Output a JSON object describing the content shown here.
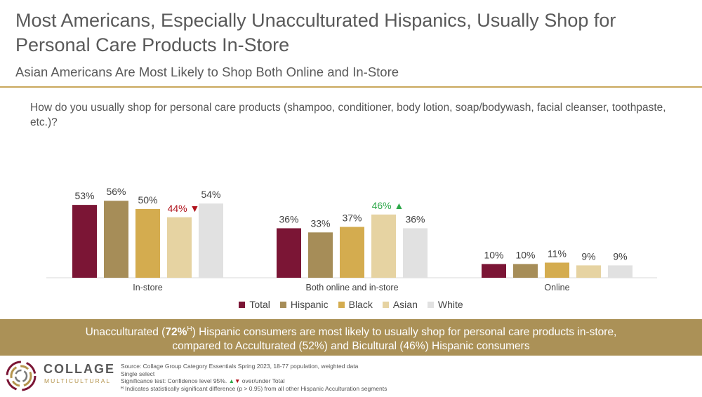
{
  "header": {
    "title": "Most Americans, Especially Unacculturated Hispanics, Usually Shop for Personal Care Products In-Store",
    "subtitle": "Asian Americans Are Most Likely to Shop Both Online and In-Store"
  },
  "question": "How do you usually shop for personal care products (shampoo, conditioner, body lotion, soap/bodywash, facial cleanser, toothpaste, etc.)?",
  "chart_data": {
    "type": "bar",
    "categories": [
      "In-store",
      "Both online and in-store",
      "Online"
    ],
    "series": [
      {
        "name": "Total",
        "color": "#7b1535",
        "values": [
          53,
          36,
          10
        ],
        "labels": [
          "53%",
          "36%",
          "10%"
        ]
      },
      {
        "name": "Hispanic",
        "color": "#a68d58",
        "values": [
          56,
          33,
          10
        ],
        "labels": [
          "56%",
          "33%",
          "10%"
        ]
      },
      {
        "name": "Black",
        "color": "#d4ac4f",
        "values": [
          50,
          37,
          11
        ],
        "labels": [
          "50%",
          "37%",
          "11%"
        ]
      },
      {
        "name": "Asian",
        "color": "#e6d3a2",
        "values": [
          44,
          46,
          9
        ],
        "labels": [
          "44%",
          "46%",
          "9%"
        ]
      },
      {
        "name": "White",
        "color": "#e1e1e1",
        "values": [
          54,
          36,
          9
        ],
        "labels": [
          "54%",
          "36%",
          "9%"
        ]
      }
    ],
    "significance": [
      {
        "series": "Asian",
        "category": "In-store",
        "direction": "down",
        "color": "#b0121b"
      },
      {
        "series": "Asian",
        "category": "Both online and in-store",
        "direction": "up",
        "color": "#2ea84a"
      }
    ],
    "ylim": [
      0,
      60
    ],
    "legend_position": "bottom",
    "grid": false
  },
  "banner": {
    "pre": "Unacculturated (",
    "bold": "72%",
    "sup": "H",
    "post": ") Hispanic consumers are most likely to usually shop for personal care products in-store,",
    "line2": "compared to Acculturated (52%) and Bicultural (46%) Hispanic consumers"
  },
  "logo": {
    "word": "COLLAGE",
    "sub": "MULTICULTURAL"
  },
  "notes": {
    "source": "Source: Collage Group Category Essentials Spring 2023, 18-77 population, weighted data",
    "select": "Single select",
    "sig_pre": "Significance test: Confidence level 95%.",
    "sig_up": "▲",
    "sig_down": "▼",
    "sig_post": "over/under Total",
    "h_note": "ᴴ Indicates statistically significant difference (p > 0.95) from all other Hispanic Acculturation segments"
  }
}
